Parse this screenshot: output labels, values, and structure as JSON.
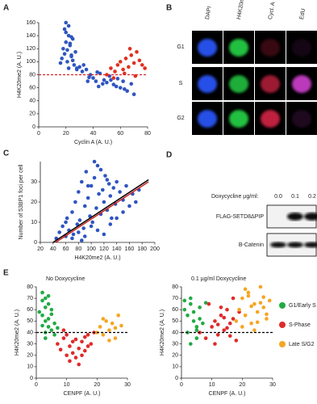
{
  "panel_labels": [
    "A",
    "B",
    "C",
    "D",
    "E"
  ],
  "chart_data": [
    {
      "type": "scatter",
      "xlabel": "Cyclin A (A. U.)",
      "ylabel": "H4K20me2 (A. U.)",
      "xlim": [
        0,
        80
      ],
      "ylim": [
        0,
        160
      ],
      "xticks": [
        0,
        20,
        40,
        60,
        80
      ],
      "yticks": [
        0,
        20,
        40,
        60,
        80,
        100,
        120,
        140,
        160
      ],
      "series": [
        {
          "color": "#2f55c0",
          "x": [
            18,
            20,
            22,
            24,
            19,
            21,
            23,
            25,
            27,
            17,
            20,
            22,
            26,
            28,
            19,
            21,
            24,
            16,
            23,
            25,
            30,
            32,
            35,
            38,
            40,
            42,
            45,
            48,
            50,
            52,
            55,
            58,
            60,
            62,
            65,
            28,
            33,
            37,
            43,
            47,
            53,
            57,
            63,
            68,
            70,
            20,
            24,
            22,
            36,
            44
          ],
          "y": [
            120,
            130,
            140,
            110,
            150,
            100,
            125,
            135,
            115,
            105,
            145,
            155,
            95,
            90,
            112,
            118,
            108,
            98,
            128,
            102,
            92,
            85,
            88,
            80,
            75,
            70,
            82,
            72,
            68,
            78,
            65,
            74,
            60,
            70,
            55,
            88,
            95,
            76,
            84,
            66,
            72,
            62,
            58,
            66,
            50,
            160,
            138,
            90,
            70,
            62
          ]
        },
        {
          "color": "#e03020",
          "x": [
            50,
            53,
            56,
            58,
            60,
            62,
            64,
            66,
            68,
            70,
            72,
            74,
            76,
            55,
            63,
            67,
            71,
            78
          ],
          "y": [
            80,
            90,
            85,
            95,
            100,
            88,
            105,
            92,
            110,
            98,
            115,
            102,
            95,
            75,
            82,
            120,
            78,
            90
          ]
        }
      ],
      "reference_line": {
        "y": 80,
        "color": "#e02020"
      }
    },
    {
      "type": "scatter",
      "xlabel": "H4K20me2 (A. U.)",
      "ylabel": "Number of 53BP1 foci per cell",
      "xlim": [
        20,
        200
      ],
      "ylim": [
        0,
        40
      ],
      "xticks": [
        20,
        40,
        60,
        80,
        100,
        120,
        140,
        160,
        180,
        200
      ],
      "yticks": [
        0,
        10,
        20,
        30
      ],
      "series": [
        {
          "color": "#2f55c0",
          "x": [
            45,
            50,
            55,
            60,
            62,
            65,
            70,
            72,
            75,
            78,
            80,
            82,
            85,
            88,
            90,
            92,
            95,
            98,
            100,
            102,
            105,
            108,
            110,
            112,
            115,
            118,
            120,
            122,
            125,
            128,
            130,
            132,
            135,
            138,
            140,
            145,
            150,
            155,
            160,
            165,
            170,
            175,
            60,
            70,
            80,
            90,
            100,
            110,
            120,
            130,
            140,
            150,
            85,
            95,
            105,
            115,
            125
          ],
          "y": [
            2,
            5,
            8,
            3,
            12,
            6,
            15,
            4,
            20,
            9,
            25,
            11,
            30,
            7,
            18,
            35,
            22,
            13,
            28,
            10,
            32,
            17,
            38,
            24,
            14,
            26,
            20,
            33,
            16,
            29,
            23,
            12,
            27,
            19,
            30,
            25,
            21,
            28,
            18,
            24,
            20,
            26,
            10,
            2,
            5,
            3,
            8,
            6,
            4,
            9,
            12,
            15,
            1,
            28,
            40,
            36,
            31
          ]
        }
      ],
      "fit_lines": [
        {
          "color": "#000000",
          "x": [
            40,
            190
          ],
          "y": [
            0,
            31
          ]
        },
        {
          "color": "#cc2222",
          "x": [
            44,
            190
          ],
          "y": [
            0,
            30
          ]
        }
      ]
    },
    {
      "type": "scatter",
      "title": "No Doxycycline",
      "xlabel": "CENPF (A. U.)",
      "ylabel": "H4K20me2 (A. U.)",
      "xlim": [
        0,
        30
      ],
      "ylim": [
        0,
        80
      ],
      "xticks": [
        0,
        10,
        20,
        30
      ],
      "yticks": [
        0,
        10,
        20,
        30,
        40,
        50,
        60,
        70,
        80
      ],
      "series": [
        {
          "name": "G1/Early S",
          "color": "#22aa44",
          "x": [
            2,
            3,
            4,
            5,
            2,
            3,
            4,
            6,
            1,
            3,
            5,
            2,
            4,
            3,
            5,
            6,
            2,
            4,
            3,
            7
          ],
          "y": [
            75,
            70,
            65,
            60,
            55,
            50,
            45,
            48,
            58,
            62,
            42,
            68,
            52,
            40,
            56,
            38,
            46,
            72,
            35,
            44
          ]
        },
        {
          "name": "S-Phase",
          "color": "#e02a2a",
          "x": [
            7,
            8,
            9,
            10,
            11,
            12,
            13,
            14,
            15,
            16,
            17,
            18,
            19,
            9,
            11,
            13,
            15,
            17,
            10,
            12,
            14,
            16
          ],
          "y": [
            30,
            25,
            35,
            20,
            28,
            22,
            18,
            26,
            32,
            24,
            38,
            30,
            40,
            42,
            15,
            34,
            20,
            28,
            38,
            32,
            12,
            36
          ]
        },
        {
          "name": "Late S/G2",
          "color": "#f5a623",
          "x": [
            20,
            21,
            22,
            23,
            24,
            25,
            26,
            27,
            22,
            24,
            26,
            28
          ],
          "y": [
            40,
            45,
            38,
            50,
            42,
            48,
            35,
            55,
            52,
            33,
            44,
            46
          ]
        }
      ],
      "reference_line": {
        "y": 40,
        "color": "#000000"
      }
    },
    {
      "type": "scatter",
      "title": "0.1 µg/ml Doxycycline",
      "xlabel": "CENPF (A. U.)",
      "ylabel": "H4K20me2 (A. U.)",
      "xlim": [
        0,
        30
      ],
      "ylim": [
        0,
        80
      ],
      "xticks": [
        0,
        10,
        20,
        30
      ],
      "yticks": [
        0,
        10,
        20,
        30,
        40,
        50,
        60,
        70,
        80
      ],
      "series": [
        {
          "color": "#22aa44",
          "x": [
            1,
            2,
            3,
            4,
            5,
            6,
            2,
            3,
            4,
            5,
            6,
            7,
            1,
            3,
            5,
            8
          ],
          "y": [
            60,
            55,
            70,
            50,
            45,
            62,
            40,
            65,
            58,
            35,
            52,
            48,
            68,
            30,
            42,
            66
          ]
        },
        {
          "color": "#e02a2a",
          "x": [
            6,
            8,
            10,
            11,
            12,
            13,
            14,
            15,
            16,
            17,
            18,
            19,
            9,
            11,
            13,
            15,
            17,
            12,
            14,
            16
          ],
          "y": [
            40,
            35,
            45,
            50,
            38,
            55,
            42,
            60,
            48,
            52,
            33,
            58,
            65,
            30,
            62,
            44,
            70,
            47,
            53,
            37
          ]
        },
        {
          "color": "#f5a623",
          "x": [
            18,
            19,
            20,
            21,
            22,
            23,
            24,
            25,
            26,
            27,
            28,
            29,
            20,
            22,
            24,
            26,
            28,
            21,
            23,
            25,
            27
          ],
          "y": [
            50,
            60,
            70,
            55,
            75,
            48,
            65,
            58,
            80,
            62,
            52,
            68,
            45,
            72,
            42,
            66,
            56,
            78,
            63,
            49,
            71
          ]
        }
      ],
      "reference_line": {
        "y": 40,
        "color": "#000000"
      }
    }
  ],
  "microscopy": {
    "columns": [
      "DAPI",
      "H4K20me2",
      "Cycl. A",
      "EdU"
    ],
    "rows": [
      "G1",
      "S",
      "G2"
    ]
  },
  "blot": {
    "title": "Doxycycline µg/ml:",
    "doses": [
      "0.0",
      "0.1",
      "0.2"
    ],
    "bands": [
      "FLAG-SETD8ΔPIP",
      "B-Catenin"
    ]
  }
}
